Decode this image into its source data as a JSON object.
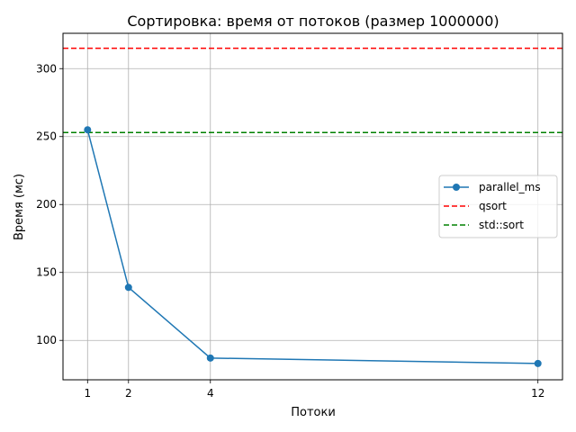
{
  "chart_data": {
    "type": "line",
    "title": "Сортировка: время от потоков (размер 1000000)",
    "xlabel": "Потоки",
    "ylabel": "Время (мс)",
    "x_ticks": [
      1,
      2,
      4,
      12
    ],
    "y_ticks": [
      100,
      150,
      200,
      250,
      300
    ],
    "xlim": [
      0.4,
      12.6
    ],
    "ylim": [
      71,
      326
    ],
    "grid": true,
    "legend_position": "center-right",
    "series": [
      {
        "name": "parallel_ms",
        "x": [
          1,
          2,
          4,
          12
        ],
        "values": [
          255,
          139,
          87,
          83
        ],
        "color": "#1f77b4",
        "style": "solid",
        "marker": "circle"
      }
    ],
    "reference_lines": [
      {
        "name": "qsort",
        "y": 315,
        "color": "#ff0000",
        "style": "dashed"
      },
      {
        "name": "std::sort",
        "y": 253,
        "color": "#008000",
        "style": "dashed"
      }
    ]
  }
}
